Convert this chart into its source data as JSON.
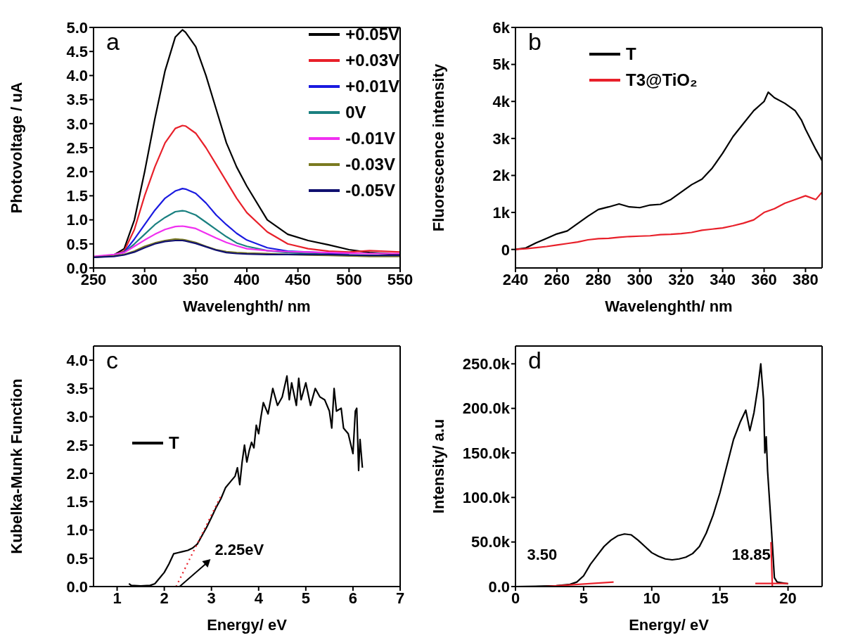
{
  "chart_data": [
    {
      "type": "line",
      "annotations": [
        "a"
      ],
      "xlabel": "Wavelenghth/ nm",
      "ylabel": "Photovoltage / uA",
      "legend": "top right",
      "x": [
        250,
        270,
        280,
        290,
        300,
        310,
        320,
        330,
        337,
        340,
        350,
        360,
        370,
        380,
        390,
        400,
        420,
        440,
        460,
        480,
        500,
        520,
        550
      ],
      "xlim": [
        250,
        550
      ],
      "xticks": [
        250,
        300,
        350,
        400,
        450,
        500,
        550
      ],
      "ylim": [
        0,
        5
      ],
      "yticks": [
        {
          "value": 0,
          "label": "0.0"
        },
        0.5,
        {
          "value": 1,
          "label": "1.0"
        },
        1.5,
        {
          "value": 2,
          "label": "2.0"
        },
        2.5,
        {
          "value": 3,
          "label": "3.0"
        },
        3.5,
        {
          "value": 4,
          "label": "4.0"
        },
        4.5,
        {
          "value": 5,
          "label": "5.0"
        }
      ],
      "series": [
        {
          "name": "+0.05V",
          "color": "#000000",
          "values": [
            0.22,
            0.27,
            0.4,
            1.0,
            2.0,
            3.1,
            4.1,
            4.8,
            4.95,
            4.9,
            4.6,
            4.0,
            3.3,
            2.6,
            2.1,
            1.7,
            1.0,
            0.7,
            0.57,
            0.48,
            0.38,
            0.32,
            0.28
          ]
        },
        {
          "name": "+0.03V",
          "color": "#e8202a",
          "values": [
            0.23,
            0.27,
            0.35,
            0.8,
            1.5,
            2.1,
            2.6,
            2.9,
            2.96,
            2.95,
            2.8,
            2.5,
            2.15,
            1.8,
            1.45,
            1.15,
            0.75,
            0.5,
            0.4,
            0.35,
            0.33,
            0.36,
            0.33
          ]
        },
        {
          "name": "+0.01V",
          "color": "#1a1ae0",
          "values": [
            0.23,
            0.27,
            0.33,
            0.6,
            0.9,
            1.2,
            1.45,
            1.6,
            1.65,
            1.64,
            1.55,
            1.35,
            1.1,
            0.9,
            0.72,
            0.58,
            0.42,
            0.35,
            0.33,
            0.31,
            0.3,
            null,
            null
          ]
        },
        {
          "name": "0V",
          "color": "#1a8080",
          "values": [
            0.23,
            0.27,
            0.32,
            0.5,
            0.7,
            0.9,
            1.05,
            1.17,
            1.19,
            1.18,
            1.1,
            0.95,
            0.8,
            0.65,
            0.52,
            0.45,
            0.36,
            0.32,
            0.3,
            0.28,
            0.27,
            null,
            null
          ]
        },
        {
          "name": "-0.01V",
          "color": "#f030f0",
          "values": [
            0.24,
            0.28,
            0.32,
            0.45,
            0.58,
            0.7,
            0.8,
            0.86,
            0.87,
            0.86,
            0.82,
            0.72,
            0.62,
            0.53,
            0.46,
            0.4,
            0.36,
            0.34,
            0.33,
            0.32,
            0.31,
            0.3,
            0.3
          ]
        },
        {
          "name": "-0.03V",
          "color": "#7a7a20",
          "values": [
            0.22,
            0.25,
            0.28,
            0.35,
            0.45,
            0.52,
            0.57,
            0.6,
            0.59,
            0.58,
            0.53,
            0.45,
            0.38,
            0.34,
            0.32,
            0.31,
            0.3,
            0.28,
            0.27,
            0.26,
            0.25,
            0.24,
            0.24
          ]
        },
        {
          "name": "-0.05V",
          "color": "#101070",
          "values": [
            0.22,
            0.24,
            0.27,
            0.33,
            0.42,
            0.5,
            0.55,
            0.57,
            0.57,
            0.56,
            0.51,
            0.44,
            0.37,
            0.32,
            0.3,
            0.29,
            0.28,
            0.28,
            0.28,
            0.28,
            0.27,
            0.26,
            0.26
          ]
        }
      ]
    },
    {
      "type": "line",
      "annotations": [
        "b"
      ],
      "xlabel": "Wavelenghth/ nm",
      "ylabel": "Fluorescence intensity",
      "legend": "top",
      "xlim": [
        240,
        388
      ],
      "xticks": [
        240,
        260,
        280,
        300,
        320,
        340,
        360,
        380
      ],
      "ylim": [
        -500,
        6000
      ],
      "yticks": [
        0,
        {
          "value": 1000,
          "label": "1k"
        },
        {
          "value": 2000,
          "label": "2k"
        },
        {
          "value": 3000,
          "label": "3k"
        },
        {
          "value": 4000,
          "label": "4k"
        },
        {
          "value": 5000,
          "label": "5k"
        },
        {
          "value": 6000,
          "label": "6k"
        }
      ],
      "series": [
        {
          "name": "T",
          "color": "#000000",
          "x": [
            240,
            245,
            250,
            255,
            260,
            265,
            270,
            275,
            280,
            285,
            290,
            295,
            300,
            305,
            310,
            315,
            320,
            325,
            330,
            335,
            340,
            345,
            350,
            355,
            360,
            362,
            365,
            370,
            375,
            378,
            380,
            385,
            388
          ],
          "values": [
            0,
            40,
            180,
            300,
            420,
            500,
            700,
            900,
            1080,
            1150,
            1230,
            1150,
            1130,
            1200,
            1220,
            1350,
            1550,
            1750,
            1900,
            2200,
            2600,
            3050,
            3400,
            3750,
            4000,
            4250,
            4100,
            3950,
            3750,
            3500,
            3250,
            2700,
            2400
          ]
        },
        {
          "name": "T3@TiO₂",
          "color": "#e8202a",
          "x": [
            240,
            245,
            250,
            255,
            260,
            265,
            270,
            275,
            280,
            285,
            290,
            295,
            300,
            305,
            310,
            315,
            320,
            325,
            330,
            335,
            340,
            345,
            350,
            355,
            360,
            365,
            370,
            375,
            380,
            385,
            388
          ],
          "values": [
            0,
            20,
            50,
            80,
            120,
            160,
            200,
            260,
            290,
            300,
            330,
            350,
            360,
            370,
            400,
            410,
            430,
            460,
            520,
            550,
            580,
            640,
            710,
            800,
            1000,
            1100,
            1250,
            1350,
            1450,
            1350,
            1550
          ]
        }
      ]
    },
    {
      "type": "line",
      "annotations": [
        "c",
        {
          "text": "2.25eV",
          "x": 2.25,
          "y": 0
        }
      ],
      "xlabel": "Energy/ eV",
      "ylabel": "Kubelka-Munk Function",
      "legend": "left",
      "xlim": [
        0.5,
        7
      ],
      "xticks": [
        1,
        2,
        3,
        4,
        5,
        6,
        7
      ],
      "ylim": [
        0,
        4.25
      ],
      "yticks": [
        {
          "value": 0,
          "label": "0.0"
        },
        0.5,
        {
          "value": 1,
          "label": "1.0"
        },
        1.5,
        {
          "value": 2,
          "label": "2.0"
        },
        2.5,
        {
          "value": 3,
          "label": "3.0"
        },
        3.5,
        {
          "value": 4,
          "label": "4.0"
        }
      ],
      "series": [
        {
          "name": "T",
          "color": "#000000",
          "x": [
            1.25,
            1.3,
            1.5,
            1.7,
            1.8,
            1.9,
            2.0,
            2.1,
            2.2,
            2.3,
            2.4,
            2.5,
            2.6,
            2.7,
            2.8,
            2.9,
            3.0,
            3.1,
            3.2,
            3.3,
            3.4,
            3.5,
            3.55,
            3.6,
            3.65,
            3.7,
            3.75,
            3.8,
            3.85,
            3.9,
            3.95,
            4.0,
            4.05,
            4.1,
            4.2,
            4.3,
            4.4,
            4.5,
            4.6,
            4.65,
            4.7,
            4.8,
            4.85,
            4.9,
            5.0,
            5.1,
            5.2,
            5.3,
            5.4,
            5.5,
            5.55,
            5.6,
            5.65,
            5.75,
            5.8,
            5.9,
            6.0,
            6.05,
            6.08,
            6.12,
            6.15,
            6.2
          ],
          "values": [
            0.05,
            0.02,
            0.01,
            0.02,
            0.05,
            0.15,
            0.25,
            0.4,
            0.58,
            0.6,
            0.62,
            0.64,
            0.68,
            0.75,
            0.9,
            1.05,
            1.22,
            1.4,
            1.55,
            1.75,
            1.85,
            1.95,
            2.1,
            1.8,
            2.2,
            2.5,
            2.2,
            2.4,
            2.55,
            2.45,
            2.85,
            2.7,
            3.0,
            3.25,
            3.05,
            3.5,
            3.2,
            3.35,
            3.72,
            3.3,
            3.6,
            3.2,
            3.68,
            3.3,
            3.6,
            3.2,
            3.5,
            3.35,
            3.3,
            3.1,
            2.8,
            3.5,
            3.1,
            3.15,
            2.8,
            2.7,
            2.35,
            3.1,
            3.15,
            2.05,
            2.6,
            2.1
          ]
        },
        {
          "type": "line",
          "line_style": "dotted",
          "color": "#e8202a",
          "x": [
            2.25,
            3.2
          ],
          "values": [
            0,
            1.6
          ]
        }
      ]
    },
    {
      "type": "line",
      "annotations": [
        "d",
        {
          "text": "3.50",
          "x": 3.5,
          "y": 0
        },
        {
          "text": "18.85",
          "x": 18.85,
          "y": 0
        }
      ],
      "xlabel": "Energy/ eV",
      "ylabel": "Intensity/ a.u",
      "xlim": [
        0,
        22.5
      ],
      "xticks": [
        0,
        5,
        10,
        15,
        20
      ],
      "ylim": [
        0,
        270000
      ],
      "yticks": [
        {
          "value": 0,
          "label": "0.0"
        },
        {
          "value": 50000,
          "label": "50.0k"
        },
        {
          "value": 100000,
          "label": "100.0k"
        },
        {
          "value": 150000,
          "label": "150.0k"
        },
        {
          "value": 200000,
          "label": "200.0k"
        },
        {
          "value": 250000,
          "label": "250.0k"
        }
      ],
      "series": [
        {
          "color": "#000000",
          "x": [
            0,
            2,
            3,
            4,
            4.5,
            5,
            5.5,
            6,
            6.5,
            7,
            7.5,
            8,
            8.5,
            9,
            9.5,
            10,
            10.5,
            11,
            11.5,
            12,
            12.5,
            13,
            13.5,
            14,
            14.5,
            15,
            15.5,
            16,
            16.5,
            16.9,
            17.2,
            17.5,
            17.8,
            18.0,
            18.2,
            18.3,
            18.4,
            18.5,
            18.8,
            19,
            19.2,
            20
          ],
          "values": [
            0,
            500,
            1000,
            2500,
            5000,
            12000,
            25000,
            35000,
            45000,
            52000,
            57000,
            59000,
            58000,
            52000,
            45000,
            38000,
            34000,
            31000,
            30000,
            31000,
            33000,
            37000,
            45000,
            60000,
            80000,
            105000,
            135000,
            165000,
            185000,
            198000,
            175000,
            195000,
            225000,
            250000,
            210000,
            150000,
            168000,
            130000,
            60000,
            10000,
            5000,
            3000
          ]
        },
        {
          "color": "#e8202a",
          "x": [
            2.1,
            7.2
          ],
          "values": [
            0,
            5000
          ]
        },
        {
          "color": "#e8202a",
          "x": [
            17.6,
            20
          ],
          "values": [
            3500,
            3500
          ]
        },
        {
          "color": "#e8202a",
          "x": [
            18.75,
            18.85
          ],
          "values": [
            50000,
            0
          ]
        }
      ]
    }
  ]
}
